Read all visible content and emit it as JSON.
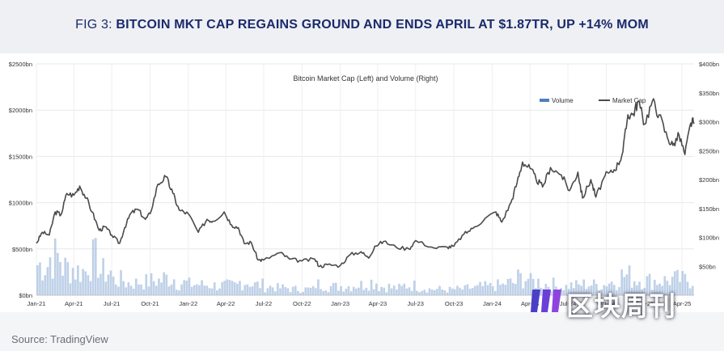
{
  "header": {
    "title_lead": "FIG 3: ",
    "title_bold": "BITCOIN MKT CAP REGAINS GROUND AND ENDS APRIL AT $1.87TR, UP +14% MOM"
  },
  "footer": {
    "source": "Source: TradingView"
  },
  "watermark": {
    "text": "区块周刊"
  },
  "colors": {
    "title": "#1b2a6b",
    "line": "#4a4a4a",
    "volume": "#a9c2e0",
    "legend_volume": "#4f7fbf",
    "grid": "#e6e8eb",
    "header_bg": "#eef0f4",
    "footer_bg": "#f4f5f7"
  },
  "chart_data": {
    "type": "line",
    "title": "Bitcoin Market Cap (Left) and Volume (Right)",
    "legend": [
      "Volume",
      "Market Cap"
    ],
    "legend_placement": "top-right",
    "grid": true,
    "x_start": "2021-01-01",
    "x_end": "2025-04-30",
    "x_ticks": [
      {
        "label": "Jan-21",
        "date": "2021-01-01"
      },
      {
        "label": "Apr-21",
        "date": "2021-04-01"
      },
      {
        "label": "Jul-21",
        "date": "2021-07-01"
      },
      {
        "label": "Oct-21",
        "date": "2021-10-01"
      },
      {
        "label": "Jan-22",
        "date": "2022-01-01"
      },
      {
        "label": "Apr-22",
        "date": "2022-04-01"
      },
      {
        "label": "Jul-22",
        "date": "2022-07-01"
      },
      {
        "label": "Oct-22",
        "date": "2022-10-01"
      },
      {
        "label": "Jan-23",
        "date": "2023-01-01"
      },
      {
        "label": "Apr-23",
        "date": "2023-04-01"
      },
      {
        "label": "Jul-23",
        "date": "2023-07-01"
      },
      {
        "label": "Oct-23",
        "date": "2023-10-01"
      },
      {
        "label": "Jan-24",
        "date": "2024-01-01"
      },
      {
        "label": "Apr-24",
        "date": "2024-04-01"
      },
      {
        "label": "Jul-24",
        "date": "2024-07-01"
      },
      {
        "label": "Oct-24",
        "date": "2024-10-01"
      },
      {
        "label": "Jan-25",
        "date": "2025-01-01"
      },
      {
        "label": "Apr-25",
        "date": "2025-04-01"
      }
    ],
    "y_left": {
      "min": 0,
      "max": 2500,
      "ticks": [
        0,
        500,
        1000,
        1500,
        2000,
        2500
      ],
      "labels": [
        "$0bn",
        "$500bn",
        "$1000bn",
        "$1500bn",
        "$2000bn",
        "$2500bn"
      ]
    },
    "y_right": {
      "min": 0,
      "max": 400,
      "ticks": [
        50,
        100,
        150,
        200,
        250,
        300,
        350,
        400
      ],
      "labels": [
        "$50bn",
        "$100bn",
        "$150bn",
        "$200bn",
        "$250bn",
        "$300bn",
        "$350bn",
        "$400bn"
      ]
    },
    "series": [
      {
        "name": "Market Cap",
        "axis": "left",
        "points": [
          [
            "2021-01-01",
            560
          ],
          [
            "2021-01-15",
            680
          ],
          [
            "2021-02-01",
            650
          ],
          [
            "2021-02-15",
            900
          ],
          [
            "2021-03-01",
            870
          ],
          [
            "2021-03-15",
            1100
          ],
          [
            "2021-04-01",
            1080
          ],
          [
            "2021-04-15",
            1180
          ],
          [
            "2021-05-01",
            1050
          ],
          [
            "2021-05-15",
            900
          ],
          [
            "2021-06-01",
            700
          ],
          [
            "2021-06-15",
            740
          ],
          [
            "2021-07-01",
            650
          ],
          [
            "2021-07-20",
            560
          ],
          [
            "2021-08-01",
            730
          ],
          [
            "2021-08-15",
            880
          ],
          [
            "2021-09-01",
            930
          ],
          [
            "2021-09-20",
            820
          ],
          [
            "2021-10-01",
            880
          ],
          [
            "2021-10-20",
            1200
          ],
          [
            "2021-11-08",
            1280
          ],
          [
            "2021-11-25",
            1100
          ],
          [
            "2021-12-10",
            920
          ],
          [
            "2022-01-01",
            880
          ],
          [
            "2022-01-25",
            680
          ],
          [
            "2022-02-15",
            820
          ],
          [
            "2022-03-01",
            800
          ],
          [
            "2022-03-28",
            900
          ],
          [
            "2022-04-15",
            760
          ],
          [
            "2022-05-01",
            730
          ],
          [
            "2022-05-15",
            560
          ],
          [
            "2022-06-01",
            570
          ],
          [
            "2022-06-18",
            380
          ],
          [
            "2022-07-01",
            380
          ],
          [
            "2022-08-10",
            460
          ],
          [
            "2022-09-01",
            390
          ],
          [
            "2022-10-01",
            370
          ],
          [
            "2022-11-01",
            390
          ],
          [
            "2022-11-12",
            310
          ],
          [
            "2022-12-01",
            330
          ],
          [
            "2023-01-01",
            320
          ],
          [
            "2023-01-25",
            440
          ],
          [
            "2023-02-20",
            470
          ],
          [
            "2023-03-10",
            400
          ],
          [
            "2023-03-25",
            530
          ],
          [
            "2023-04-15",
            580
          ],
          [
            "2023-05-15",
            520
          ],
          [
            "2023-06-15",
            500
          ],
          [
            "2023-07-01",
            590
          ],
          [
            "2023-08-15",
            510
          ],
          [
            "2023-09-15",
            520
          ],
          [
            "2023-10-01",
            530
          ],
          [
            "2023-10-25",
            660
          ],
          [
            "2023-11-15",
            720
          ],
          [
            "2023-12-15",
            830
          ],
          [
            "2024-01-10",
            900
          ],
          [
            "2024-01-24",
            790
          ],
          [
            "2024-02-15",
            1000
          ],
          [
            "2024-03-01",
            1220
          ],
          [
            "2024-03-14",
            1440
          ],
          [
            "2024-04-01",
            1370
          ],
          [
            "2024-04-15",
            1260
          ],
          [
            "2024-05-01",
            1170
          ],
          [
            "2024-05-20",
            1380
          ],
          [
            "2024-06-15",
            1300
          ],
          [
            "2024-07-05",
            1130
          ],
          [
            "2024-07-25",
            1330
          ],
          [
            "2024-08-05",
            1050
          ],
          [
            "2024-08-25",
            1250
          ],
          [
            "2024-09-06",
            1060
          ],
          [
            "2024-09-28",
            1290
          ],
          [
            "2024-10-15",
            1330
          ],
          [
            "2024-10-30",
            1420
          ],
          [
            "2024-11-10",
            1550
          ],
          [
            "2024-11-22",
            1950
          ],
          [
            "2024-12-05",
            1960
          ],
          [
            "2024-12-17",
            2100
          ],
          [
            "2025-01-01",
            1850
          ],
          [
            "2025-01-20",
            2100
          ],
          [
            "2025-02-05",
            1950
          ],
          [
            "2025-02-25",
            1700
          ],
          [
            "2025-03-10",
            1620
          ],
          [
            "2025-03-25",
            1730
          ],
          [
            "2025-04-08",
            1520
          ],
          [
            "2025-04-22",
            1860
          ],
          [
            "2025-04-30",
            1870
          ]
        ]
      },
      {
        "name": "Volume",
        "axis": "right",
        "monthly_avg": [
          50,
          62,
          45,
          40,
          58,
          38,
          25,
          20,
          22,
          24,
          28,
          20,
          18,
          17,
          16,
          16,
          22,
          17,
          14,
          12,
          10,
          10,
          18,
          14,
          15,
          17,
          22,
          14,
          12,
          16,
          12,
          10,
          9,
          10,
          12,
          14,
          16,
          20,
          28,
          22,
          18,
          14,
          16,
          18,
          17,
          22,
          32,
          26,
          24,
          24,
          26,
          25
        ]
      }
    ]
  }
}
